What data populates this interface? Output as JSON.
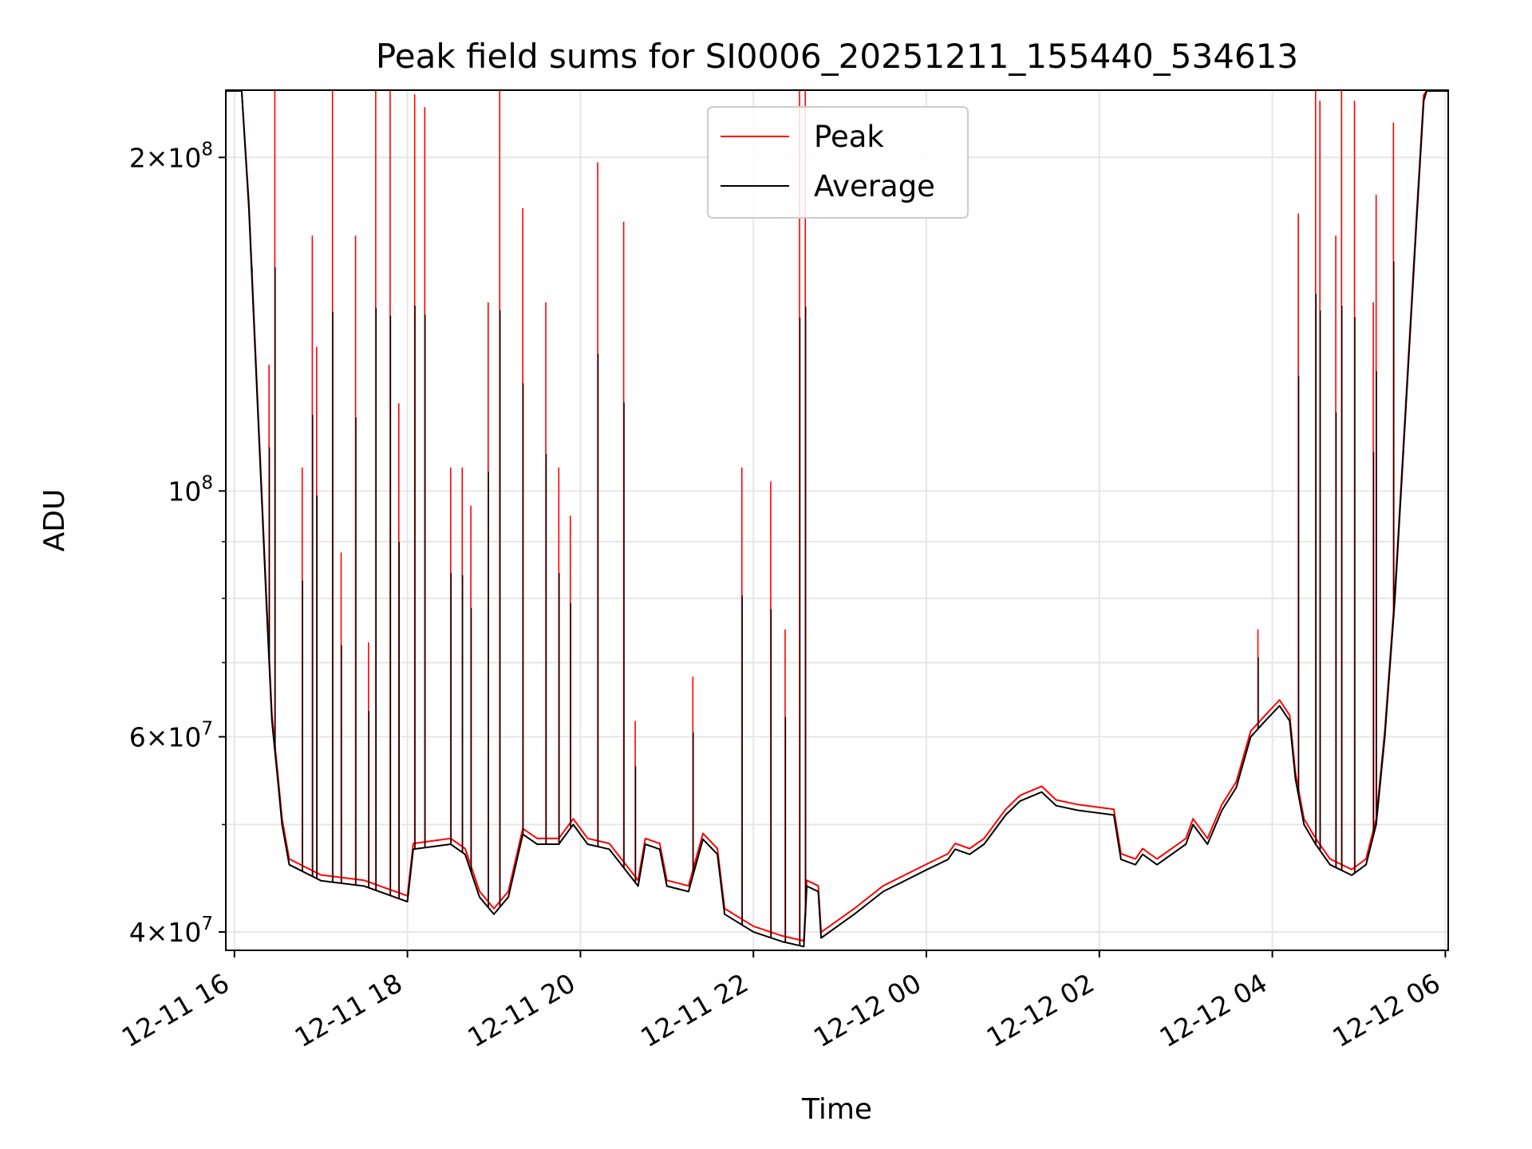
{
  "chart_data": {
    "type": "line",
    "title": "Peak field sums for SI0006_20251211_155440_534613",
    "xlabel": "Time",
    "ylabel": "ADU",
    "yscale": "log",
    "xlim": [
      "2025-12-11T15:54",
      "2025-12-12T06:02"
    ],
    "ylim": [
      38500000,
      230000000
    ],
    "grid": true,
    "legend_position": "top-center",
    "x_ticks": [
      {
        "t": "2025-12-11T16:00",
        "label": "12-11 16"
      },
      {
        "t": "2025-12-11T18:00",
        "label": "12-11 18"
      },
      {
        "t": "2025-12-11T20:00",
        "label": "12-11 20"
      },
      {
        "t": "2025-12-11T22:00",
        "label": "12-11 22"
      },
      {
        "t": "2025-12-12T00:00",
        "label": "12-12 00"
      },
      {
        "t": "2025-12-12T02:00",
        "label": "12-12 02"
      },
      {
        "t": "2025-12-12T04:00",
        "label": "12-12 04"
      },
      {
        "t": "2025-12-12T06:00",
        "label": "12-12 06"
      }
    ],
    "y_major_ticks": [
      {
        "value": 40000000,
        "mantissa": "4",
        "times": "×",
        "base": "10",
        "exp": "7"
      },
      {
        "value": 60000000,
        "mantissa": "6",
        "times": "×",
        "base": "10",
        "exp": "7"
      },
      {
        "value": 100000000,
        "mantissa": "",
        "times": "",
        "base": "10",
        "exp": "8"
      },
      {
        "value": 200000000,
        "mantissa": "2",
        "times": "×",
        "base": "10",
        "exp": "8"
      }
    ],
    "y_minor_ticks": [
      50000000,
      70000000,
      80000000,
      90000000
    ],
    "series": [
      {
        "name": "Peak",
        "color": "#ff0000",
        "spikes": [
          [
            "2025-12-11T16:12",
            160000000
          ],
          [
            "2025-12-11T16:24",
            130000000
          ],
          [
            "2025-12-11T16:28",
            235000000
          ],
          [
            "2025-12-11T16:47",
            105000000
          ],
          [
            "2025-12-11T16:54",
            170000000
          ],
          [
            "2025-12-11T16:57",
            135000000
          ],
          [
            "2025-12-11T17:08",
            230000000
          ],
          [
            "2025-12-11T17:14",
            88000000
          ],
          [
            "2025-12-11T17:24",
            170000000
          ],
          [
            "2025-12-11T17:33",
            73000000
          ],
          [
            "2025-12-11T17:38",
            234000000
          ],
          [
            "2025-12-11T17:48",
            230000000
          ],
          [
            "2025-12-11T17:54",
            120000000
          ],
          [
            "2025-12-11T18:05",
            228000000
          ],
          [
            "2025-12-11T18:12",
            222000000
          ],
          [
            "2025-12-11T18:30",
            105000000
          ],
          [
            "2025-12-11T18:38",
            105000000
          ],
          [
            "2025-12-11T18:44",
            97000000
          ],
          [
            "2025-12-11T18:56",
            148000000
          ],
          [
            "2025-12-11T19:04",
            236000000
          ],
          [
            "2025-12-11T19:20",
            180000000
          ],
          [
            "2025-12-11T19:36",
            148000000
          ],
          [
            "2025-12-11T19:45",
            105000000
          ],
          [
            "2025-12-11T19:53",
            95000000
          ],
          [
            "2025-12-11T20:12",
            198000000
          ],
          [
            "2025-12-11T20:30",
            175000000
          ],
          [
            "2025-12-11T20:38",
            62000000
          ],
          [
            "2025-12-11T21:18",
            68000000
          ],
          [
            "2025-12-11T21:52",
            105000000
          ],
          [
            "2025-12-11T22:12",
            102000000
          ],
          [
            "2025-12-11T22:22",
            75000000
          ],
          [
            "2025-12-11T22:32",
            238000000
          ],
          [
            "2025-12-11T22:36",
            240000000
          ],
          [
            "2025-12-12T03:50",
            75000000
          ],
          [
            "2025-12-12T04:18",
            178000000
          ],
          [
            "2025-12-12T04:30",
            235000000
          ],
          [
            "2025-12-12T04:33",
            225000000
          ],
          [
            "2025-12-12T04:44",
            170000000
          ],
          [
            "2025-12-12T04:48",
            232000000
          ],
          [
            "2025-12-12T04:57",
            225000000
          ],
          [
            "2025-12-12T05:10",
            148000000
          ],
          [
            "2025-12-12T05:12",
            185000000
          ],
          [
            "2025-12-12T05:24",
            215000000
          ]
        ]
      },
      {
        "name": "Average",
        "color": "#000000",
        "baseline": [
          [
            "2025-12-11T15:54",
            230000000
          ],
          [
            "2025-12-11T16:05",
            230000000
          ],
          [
            "2025-12-11T16:10",
            180000000
          ],
          [
            "2025-12-11T16:16",
            120000000
          ],
          [
            "2025-12-11T16:22",
            80000000
          ],
          [
            "2025-12-11T16:26",
            62000000
          ],
          [
            "2025-12-11T16:30",
            55000000
          ],
          [
            "2025-12-11T16:33",
            50000000
          ],
          [
            "2025-12-11T16:38",
            46000000
          ],
          [
            "2025-12-11T17:00",
            44500000
          ],
          [
            "2025-12-11T17:30",
            44000000
          ],
          [
            "2025-12-11T18:00",
            42600000
          ],
          [
            "2025-12-11T18:04",
            47500000
          ],
          [
            "2025-12-11T18:30",
            48000000
          ],
          [
            "2025-12-11T18:40",
            47000000
          ],
          [
            "2025-12-11T18:50",
            43000000
          ],
          [
            "2025-12-11T19:00",
            41500000
          ],
          [
            "2025-12-11T19:10",
            43000000
          ],
          [
            "2025-12-11T19:20",
            49000000
          ],
          [
            "2025-12-11T19:30",
            48000000
          ],
          [
            "2025-12-11T19:45",
            48000000
          ],
          [
            "2025-12-11T19:55",
            50000000
          ],
          [
            "2025-12-11T20:05",
            48000000
          ],
          [
            "2025-12-11T20:20",
            47500000
          ],
          [
            "2025-12-11T20:40",
            44000000
          ],
          [
            "2025-12-11T20:45",
            48000000
          ],
          [
            "2025-12-11T20:55",
            47500000
          ],
          [
            "2025-12-11T21:00",
            44000000
          ],
          [
            "2025-12-11T21:15",
            43500000
          ],
          [
            "2025-12-11T21:25",
            48500000
          ],
          [
            "2025-12-11T21:35",
            47000000
          ],
          [
            "2025-12-11T21:40",
            41500000
          ],
          [
            "2025-12-11T22:00",
            40000000
          ],
          [
            "2025-12-11T22:20",
            39200000
          ],
          [
            "2025-12-11T22:35",
            38800000
          ],
          [
            "2025-12-11T22:37",
            44000000
          ],
          [
            "2025-12-11T22:45",
            43500000
          ],
          [
            "2025-12-11T22:47",
            39500000
          ],
          [
            "2025-12-11T23:10",
            41500000
          ],
          [
            "2025-12-11T23:30",
            43500000
          ],
          [
            "2025-12-12T00:00",
            45500000
          ],
          [
            "2025-12-12T00:15",
            46500000
          ],
          [
            "2025-12-12T00:20",
            47500000
          ],
          [
            "2025-12-12T00:30",
            47000000
          ],
          [
            "2025-12-12T00:40",
            48000000
          ],
          [
            "2025-12-12T00:55",
            51000000
          ],
          [
            "2025-12-12T01:05",
            52500000
          ],
          [
            "2025-12-12T01:20",
            53500000
          ],
          [
            "2025-12-12T01:30",
            52000000
          ],
          [
            "2025-12-12T01:45",
            51500000
          ],
          [
            "2025-12-12T02:10",
            51000000
          ],
          [
            "2025-12-12T02:15",
            46500000
          ],
          [
            "2025-12-12T02:25",
            46000000
          ],
          [
            "2025-12-12T02:30",
            47000000
          ],
          [
            "2025-12-12T02:40",
            46000000
          ],
          [
            "2025-12-12T03:00",
            48000000
          ],
          [
            "2025-12-12T03:05",
            50000000
          ],
          [
            "2025-12-12T03:15",
            48000000
          ],
          [
            "2025-12-12T03:25",
            51500000
          ],
          [
            "2025-12-12T03:35",
            54000000
          ],
          [
            "2025-12-12T03:45",
            60000000
          ],
          [
            "2025-12-12T03:55",
            62000000
          ],
          [
            "2025-12-12T04:05",
            64000000
          ],
          [
            "2025-12-12T04:12",
            62000000
          ],
          [
            "2025-12-12T04:16",
            55000000
          ],
          [
            "2025-12-12T04:22",
            50000000
          ],
          [
            "2025-12-12T04:30",
            48000000
          ],
          [
            "2025-12-12T04:40",
            46000000
          ],
          [
            "2025-12-12T04:55",
            45000000
          ],
          [
            "2025-12-12T05:05",
            46000000
          ],
          [
            "2025-12-12T05:12",
            50000000
          ],
          [
            "2025-12-12T05:18",
            60000000
          ],
          [
            "2025-12-12T05:25",
            80000000
          ],
          [
            "2025-12-12T05:32",
            115000000
          ],
          [
            "2025-12-12T05:40",
            175000000
          ],
          [
            "2025-12-12T05:45",
            225000000
          ],
          [
            "2025-12-12T05:47",
            230000000
          ],
          [
            "2025-12-12T06:02",
            230000000
          ]
        ]
      }
    ]
  }
}
